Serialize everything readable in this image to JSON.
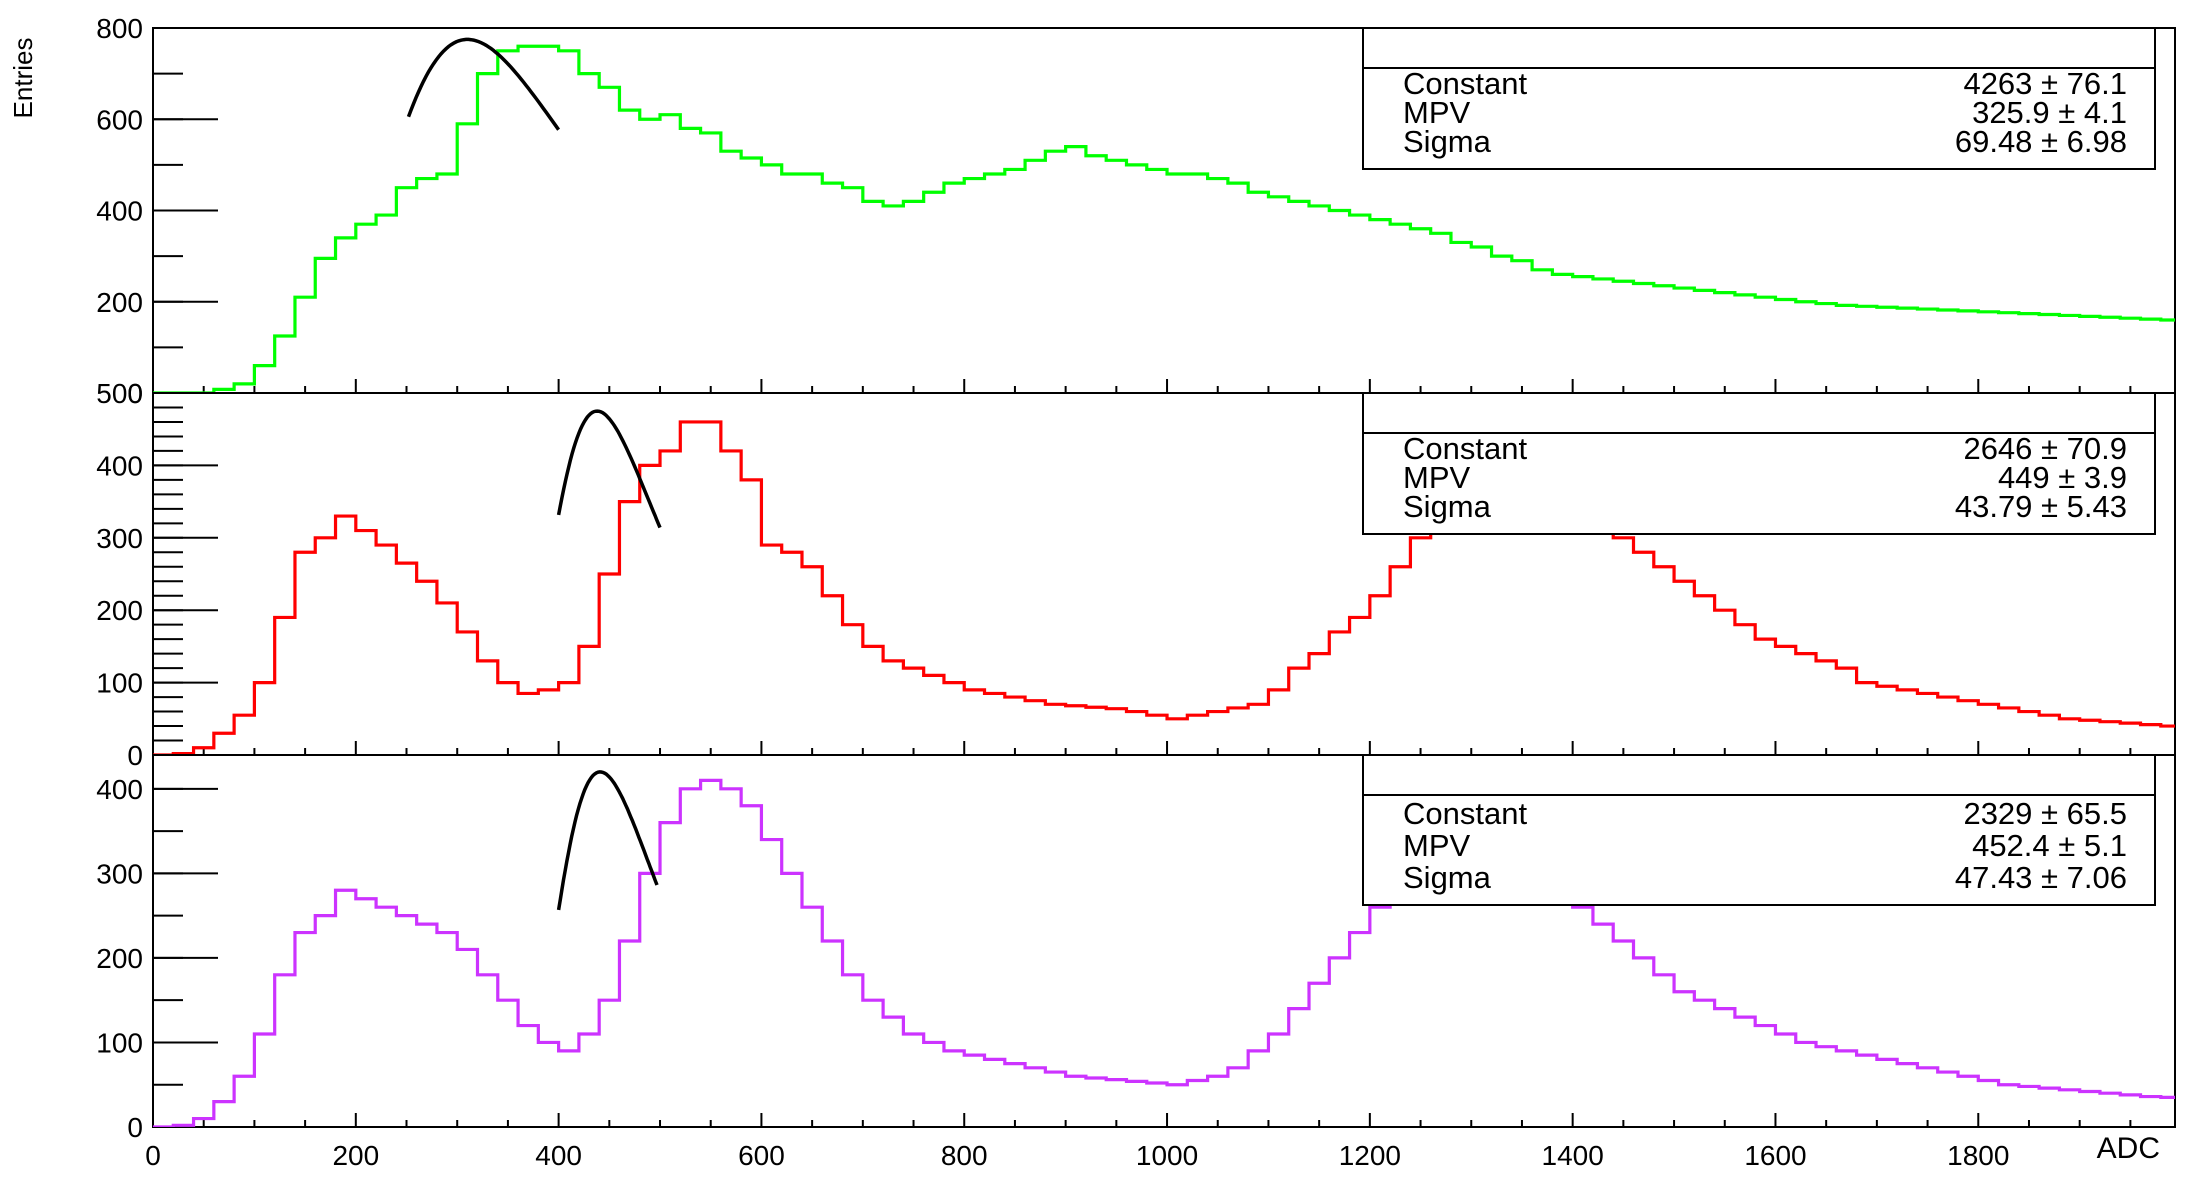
{
  "chart_data": [
    {
      "type": "histogram",
      "color": "#00ff00",
      "xlim": [
        0,
        1994
      ],
      "ylim": [
        0,
        800
      ],
      "yticks": [
        0,
        200,
        400,
        600,
        800
      ],
      "y_minor_step": 100,
      "ylabel": "Entries",
      "bin_width": 20,
      "x_start": 0,
      "values": [
        0,
        0,
        0,
        8,
        20,
        60,
        125,
        210,
        295,
        340,
        370,
        390,
        450,
        470,
        480,
        590,
        700,
        750,
        760,
        760,
        750,
        700,
        670,
        620,
        600,
        610,
        580,
        570,
        530,
        515,
        500,
        480,
        480,
        460,
        450,
        420,
        410,
        420,
        440,
        460,
        470,
        480,
        490,
        510,
        530,
        540,
        520,
        510,
        500,
        490,
        480,
        480,
        470,
        460,
        440,
        430,
        420,
        410,
        400,
        390,
        380,
        370,
        360,
        350,
        330,
        320,
        300,
        290,
        270,
        260,
        255,
        250,
        245,
        240,
        235,
        230,
        225,
        220,
        215,
        210,
        205,
        200,
        196,
        192,
        190,
        188,
        186,
        184,
        182,
        180,
        178,
        176,
        174,
        172,
        170,
        168,
        166,
        164,
        162,
        160
      ],
      "fit": {
        "x_range": [
          252,
          400
        ],
        "mpv": 310,
        "peak": 775,
        "width": 68
      },
      "stats": {
        "title": "",
        "rows": [
          {
            "label": "Constant",
            "value": "4263 ± 76.1"
          },
          {
            "label": "MPV",
            "value": "325.9 ± 4.1"
          },
          {
            "label": "Sigma",
            "value": "69.48 ± 6.98"
          }
        ]
      }
    },
    {
      "type": "histogram",
      "color": "#ff0000",
      "xlim": [
        0,
        1994
      ],
      "ylim": [
        0,
        500
      ],
      "yticks": [
        0,
        100,
        200,
        300,
        400,
        500
      ],
      "y_minor_step": 20,
      "bin_width": 20,
      "x_start": 0,
      "values": [
        0,
        2,
        10,
        30,
        55,
        100,
        190,
        280,
        300,
        330,
        310,
        290,
        265,
        240,
        210,
        170,
        130,
        100,
        85,
        90,
        100,
        150,
        250,
        350,
        400,
        420,
        460,
        460,
        420,
        380,
        290,
        280,
        260,
        220,
        180,
        150,
        130,
        120,
        110,
        100,
        90,
        85,
        80,
        75,
        70,
        68,
        66,
        64,
        60,
        55,
        50,
        55,
        60,
        65,
        70,
        90,
        120,
        140,
        170,
        190,
        220,
        260,
        300,
        320,
        330,
        340,
        350,
        360,
        360,
        350,
        340,
        320,
        300,
        280,
        260,
        240,
        220,
        200,
        180,
        160,
        150,
        140,
        130,
        120,
        100,
        95,
        90,
        85,
        80,
        75,
        70,
        65,
        60,
        55,
        50,
        48,
        46,
        44,
        42,
        40
      ],
      "fit": {
        "x_range": [
          400,
          500
        ],
        "mpv": 438,
        "peak": 475,
        "width": 38
      },
      "stats": {
        "title": "",
        "rows": [
          {
            "label": "Constant",
            "value": "2646 ± 70.9"
          },
          {
            "label": "MPV",
            "value": "449 ± 3.9"
          },
          {
            "label": "Sigma",
            "value": "43.79 ± 5.43"
          }
        ]
      }
    },
    {
      "type": "histogram",
      "color": "#cc33ff",
      "xlim": [
        0,
        1994
      ],
      "ylim": [
        0,
        440
      ],
      "yticks": [
        0,
        100,
        200,
        300,
        400
      ],
      "y_minor_step": 50,
      "xticks": [
        0,
        200,
        400,
        600,
        800,
        1000,
        1200,
        1400,
        1600,
        1800
      ],
      "xlabel": "ADC",
      "bin_width": 20,
      "x_start": 0,
      "values": [
        0,
        2,
        10,
        30,
        60,
        110,
        180,
        230,
        250,
        280,
        270,
        260,
        250,
        240,
        230,
        210,
        180,
        150,
        120,
        100,
        90,
        110,
        150,
        220,
        300,
        360,
        400,
        410,
        400,
        380,
        340,
        300,
        260,
        220,
        180,
        150,
        130,
        110,
        100,
        90,
        85,
        80,
        75,
        70,
        65,
        60,
        58,
        56,
        54,
        52,
        50,
        55,
        60,
        70,
        90,
        110,
        140,
        170,
        200,
        230,
        260,
        280,
        295,
        300,
        305,
        310,
        305,
        300,
        290,
        280,
        260,
        240,
        220,
        200,
        180,
        160,
        150,
        140,
        130,
        120,
        110,
        100,
        95,
        90,
        85,
        80,
        75,
        70,
        65,
        60,
        55,
        50,
        48,
        46,
        44,
        42,
        40,
        38,
        36,
        35
      ],
      "fit": {
        "x_range": [
          400,
          497
        ],
        "mpv": 441,
        "peak": 420,
        "width": 36
      },
      "stats": {
        "title": "",
        "rows": [
          {
            "label": "Constant",
            "value": "2329 ± 65.5"
          },
          {
            "label": "MPV",
            "value": "452.4 ± 5.1"
          },
          {
            "label": "Sigma",
            "value": "47.43 ± 7.06"
          }
        ]
      }
    }
  ]
}
